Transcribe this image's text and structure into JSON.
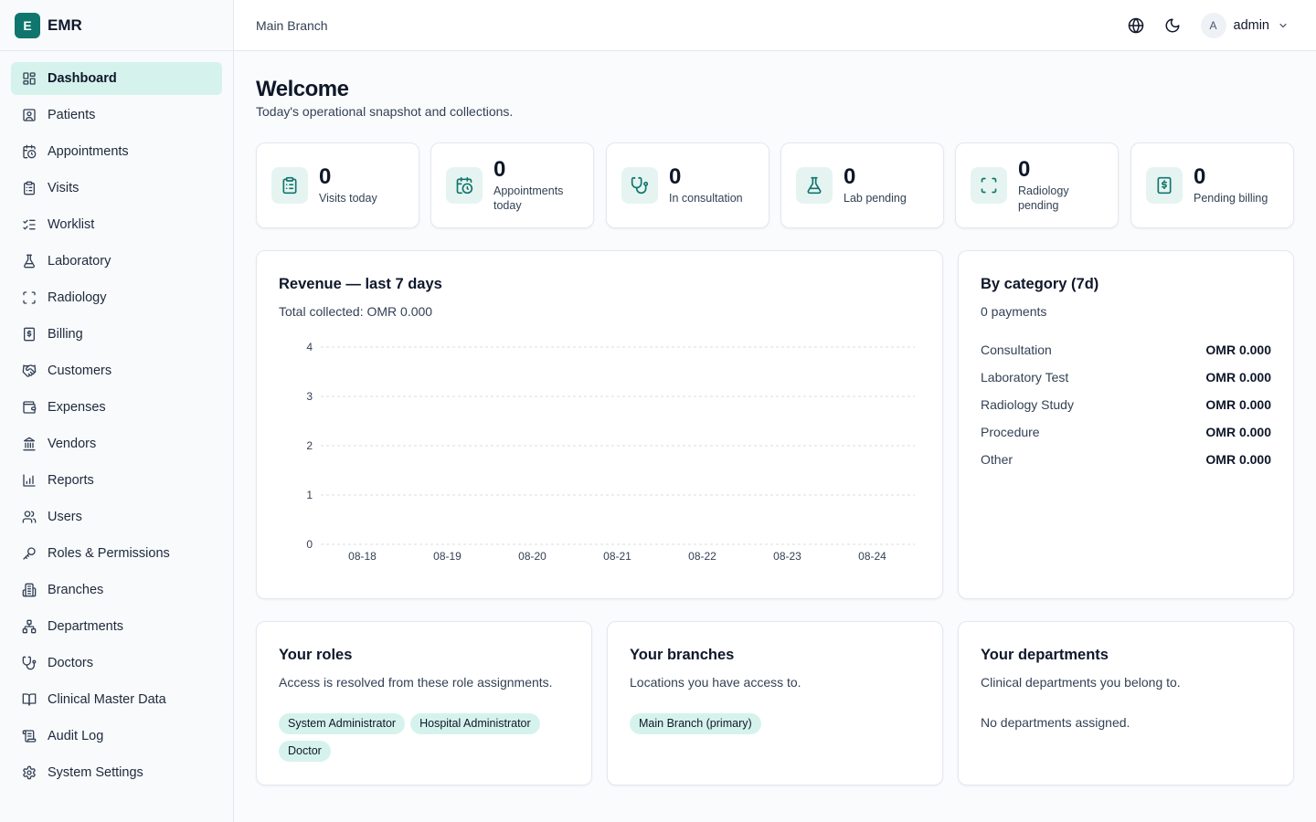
{
  "brand": {
    "logo_letter": "E",
    "name": "EMR"
  },
  "sidebar": {
    "items": [
      {
        "label": "Dashboard",
        "icon": "dashboard-icon",
        "active": true
      },
      {
        "label": "Patients",
        "icon": "patient-icon"
      },
      {
        "label": "Appointments",
        "icon": "calendar-clock-icon"
      },
      {
        "label": "Visits",
        "icon": "clipboard-icon"
      },
      {
        "label": "Worklist",
        "icon": "checklist-icon"
      },
      {
        "label": "Laboratory",
        "icon": "flask-icon"
      },
      {
        "label": "Radiology",
        "icon": "scan-icon"
      },
      {
        "label": "Billing",
        "icon": "receipt-icon"
      },
      {
        "label": "Customers",
        "icon": "handshake-icon"
      },
      {
        "label": "Expenses",
        "icon": "wallet-icon"
      },
      {
        "label": "Vendors",
        "icon": "bank-icon"
      },
      {
        "label": "Reports",
        "icon": "bar-chart-icon"
      },
      {
        "label": "Users",
        "icon": "users-icon"
      },
      {
        "label": "Roles & Permissions",
        "icon": "key-icon"
      },
      {
        "label": "Branches",
        "icon": "building-icon"
      },
      {
        "label": "Departments",
        "icon": "network-icon"
      },
      {
        "label": "Doctors",
        "icon": "stethoscope-icon"
      },
      {
        "label": "Clinical Master Data",
        "icon": "book-icon"
      },
      {
        "label": "Audit Log",
        "icon": "scroll-icon"
      },
      {
        "label": "System Settings",
        "icon": "gear-icon"
      }
    ]
  },
  "header": {
    "branch": "Main Branch",
    "user": {
      "initial": "A",
      "name": "admin"
    }
  },
  "page": {
    "title": "Welcome",
    "subtitle": "Today's operational snapshot and collections."
  },
  "stats": [
    {
      "value": "0",
      "label": "Visits today",
      "icon": "clipboard-icon"
    },
    {
      "value": "0",
      "label": "Appointments today",
      "icon": "calendar-clock-icon"
    },
    {
      "value": "0",
      "label": "In consultation",
      "icon": "stethoscope-icon"
    },
    {
      "value": "0",
      "label": "Lab pending",
      "icon": "flask-icon"
    },
    {
      "value": "0",
      "label": "Radiology pending",
      "icon": "scan-icon"
    },
    {
      "value": "0",
      "label": "Pending billing",
      "icon": "receipt-icon"
    }
  ],
  "revenue": {
    "title": "Revenue — last 7 days",
    "total": "Total collected: OMR 0.000"
  },
  "chart_data": {
    "type": "line",
    "title": "Revenue — last 7 days",
    "categories": [
      "08-18",
      "08-19",
      "08-20",
      "08-21",
      "08-22",
      "08-23",
      "08-24"
    ],
    "series": [
      {
        "values": [
          0,
          0,
          0,
          0,
          0,
          0,
          0
        ]
      }
    ],
    "yticks": [
      "0",
      "1",
      "2",
      "3",
      "4"
    ],
    "ylim": [
      0,
      4
    ],
    "grid": true,
    "xlabel": "",
    "ylabel": ""
  },
  "category": {
    "title": "By category (7d)",
    "count": "0 payments",
    "rows": [
      {
        "name": "Consultation",
        "value": "OMR 0.000"
      },
      {
        "name": "Laboratory Test",
        "value": "OMR 0.000"
      },
      {
        "name": "Radiology Study",
        "value": "OMR 0.000"
      },
      {
        "name": "Procedure",
        "value": "OMR 0.000"
      },
      {
        "name": "Other",
        "value": "OMR 0.000"
      }
    ]
  },
  "roles": {
    "title": "Your roles",
    "subtitle": "Access is resolved from these role assignments.",
    "chips": [
      "System Administrator",
      "Hospital Administrator",
      "Doctor"
    ]
  },
  "branches": {
    "title": "Your branches",
    "subtitle": "Locations you have access to.",
    "chips": [
      "Main Branch (primary)"
    ]
  },
  "departments": {
    "title": "Your departments",
    "subtitle": "Clinical departments you belong to.",
    "empty": "No departments assigned."
  },
  "colors": {
    "accent": "#0f766e",
    "active_bg": "#d5f3ec",
    "icon_bg": "#e6f4f1"
  }
}
